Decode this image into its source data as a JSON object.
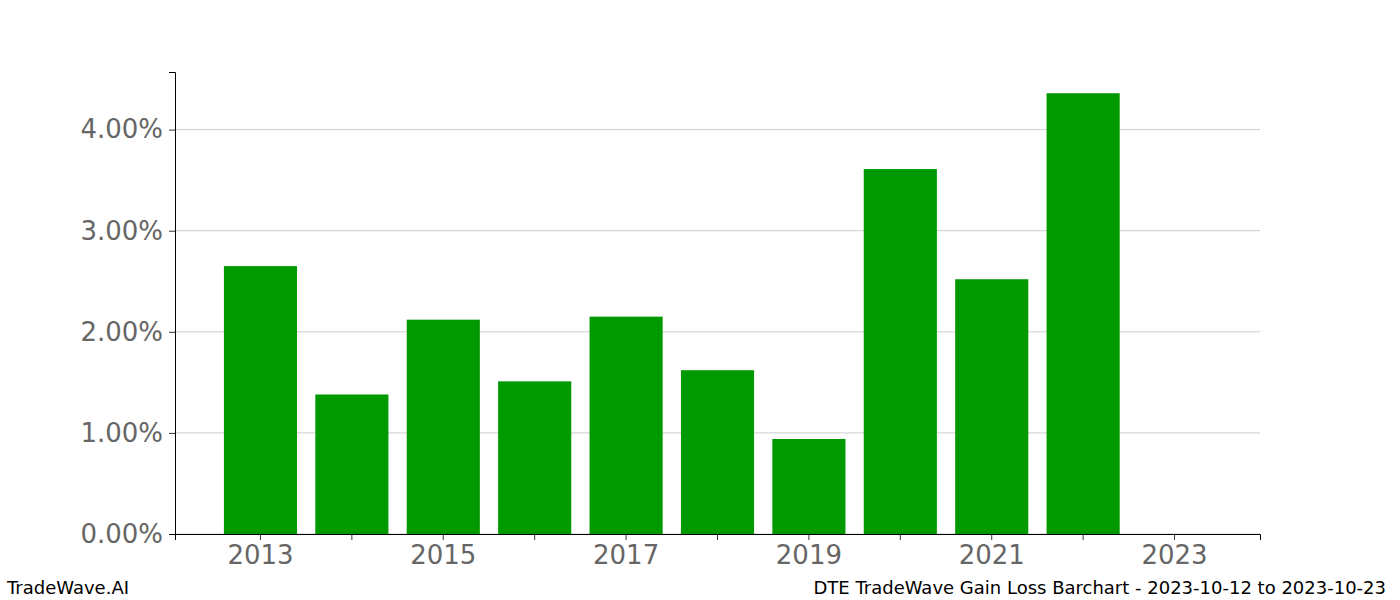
{
  "chart_data": {
    "type": "bar",
    "title": "DTE TradeWave Gain Loss Barchart - 2023-10-12 to 2023-10-23",
    "annotations": [
      "TradeWave.AI"
    ],
    "categories": [
      "2013",
      null,
      "2015",
      null,
      "2017",
      null,
      "2019",
      null,
      "2021",
      null,
      "2023"
    ],
    "values": [
      2.65,
      1.38,
      2.12,
      1.51,
      2.15,
      1.62,
      0.94,
      3.61,
      2.52,
      4.36,
      null
    ],
    "color": "#009900",
    "ylim": [
      0,
      4.57
    ],
    "yticks": [
      {
        "value": 0,
        "label": "0.00%"
      },
      {
        "value": 1,
        "label": "1.00%"
      },
      {
        "value": 2,
        "label": "2.00%"
      },
      {
        "value": 3,
        "label": "3.00%"
      },
      {
        "value": 4,
        "label": "4.00%"
      }
    ],
    "grid": true
  }
}
